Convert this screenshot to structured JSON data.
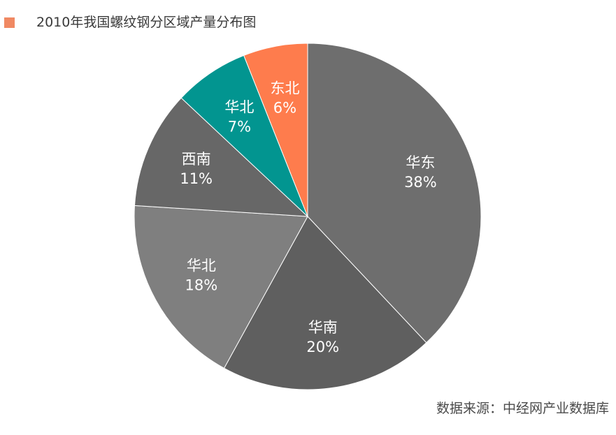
{
  "chart_data": {
    "type": "pie",
    "title": "2010年我国螺纹钢分区域产量分布图",
    "legend_color": "#f08963",
    "source": "数据来源：中经网产业数据库",
    "slices": [
      {
        "label": "华东",
        "value": 38,
        "value_label": "38%",
        "color": "#6e6e6e",
        "text_color": "#d6dcf5"
      },
      {
        "label": "华南",
        "value": 20,
        "value_label": "20%",
        "color": "#5f5f5f",
        "text_color": "#ffffff"
      },
      {
        "label": "华北",
        "value": 18,
        "value_label": "18%",
        "color": "#7f7f7f",
        "text_color": "#ffffff"
      },
      {
        "label": "西南",
        "value": 11,
        "value_label": "11%",
        "color": "#676767",
        "text_color": "#ffffff"
      },
      {
        "label": "华北",
        "value": 7,
        "value_label": "7%",
        "color": "#029590",
        "text_color": "#ffffff"
      },
      {
        "label": "东北",
        "value": 6,
        "value_label": "6%",
        "color": "#fe7c4d",
        "text_color": "#ffffff"
      }
    ]
  }
}
